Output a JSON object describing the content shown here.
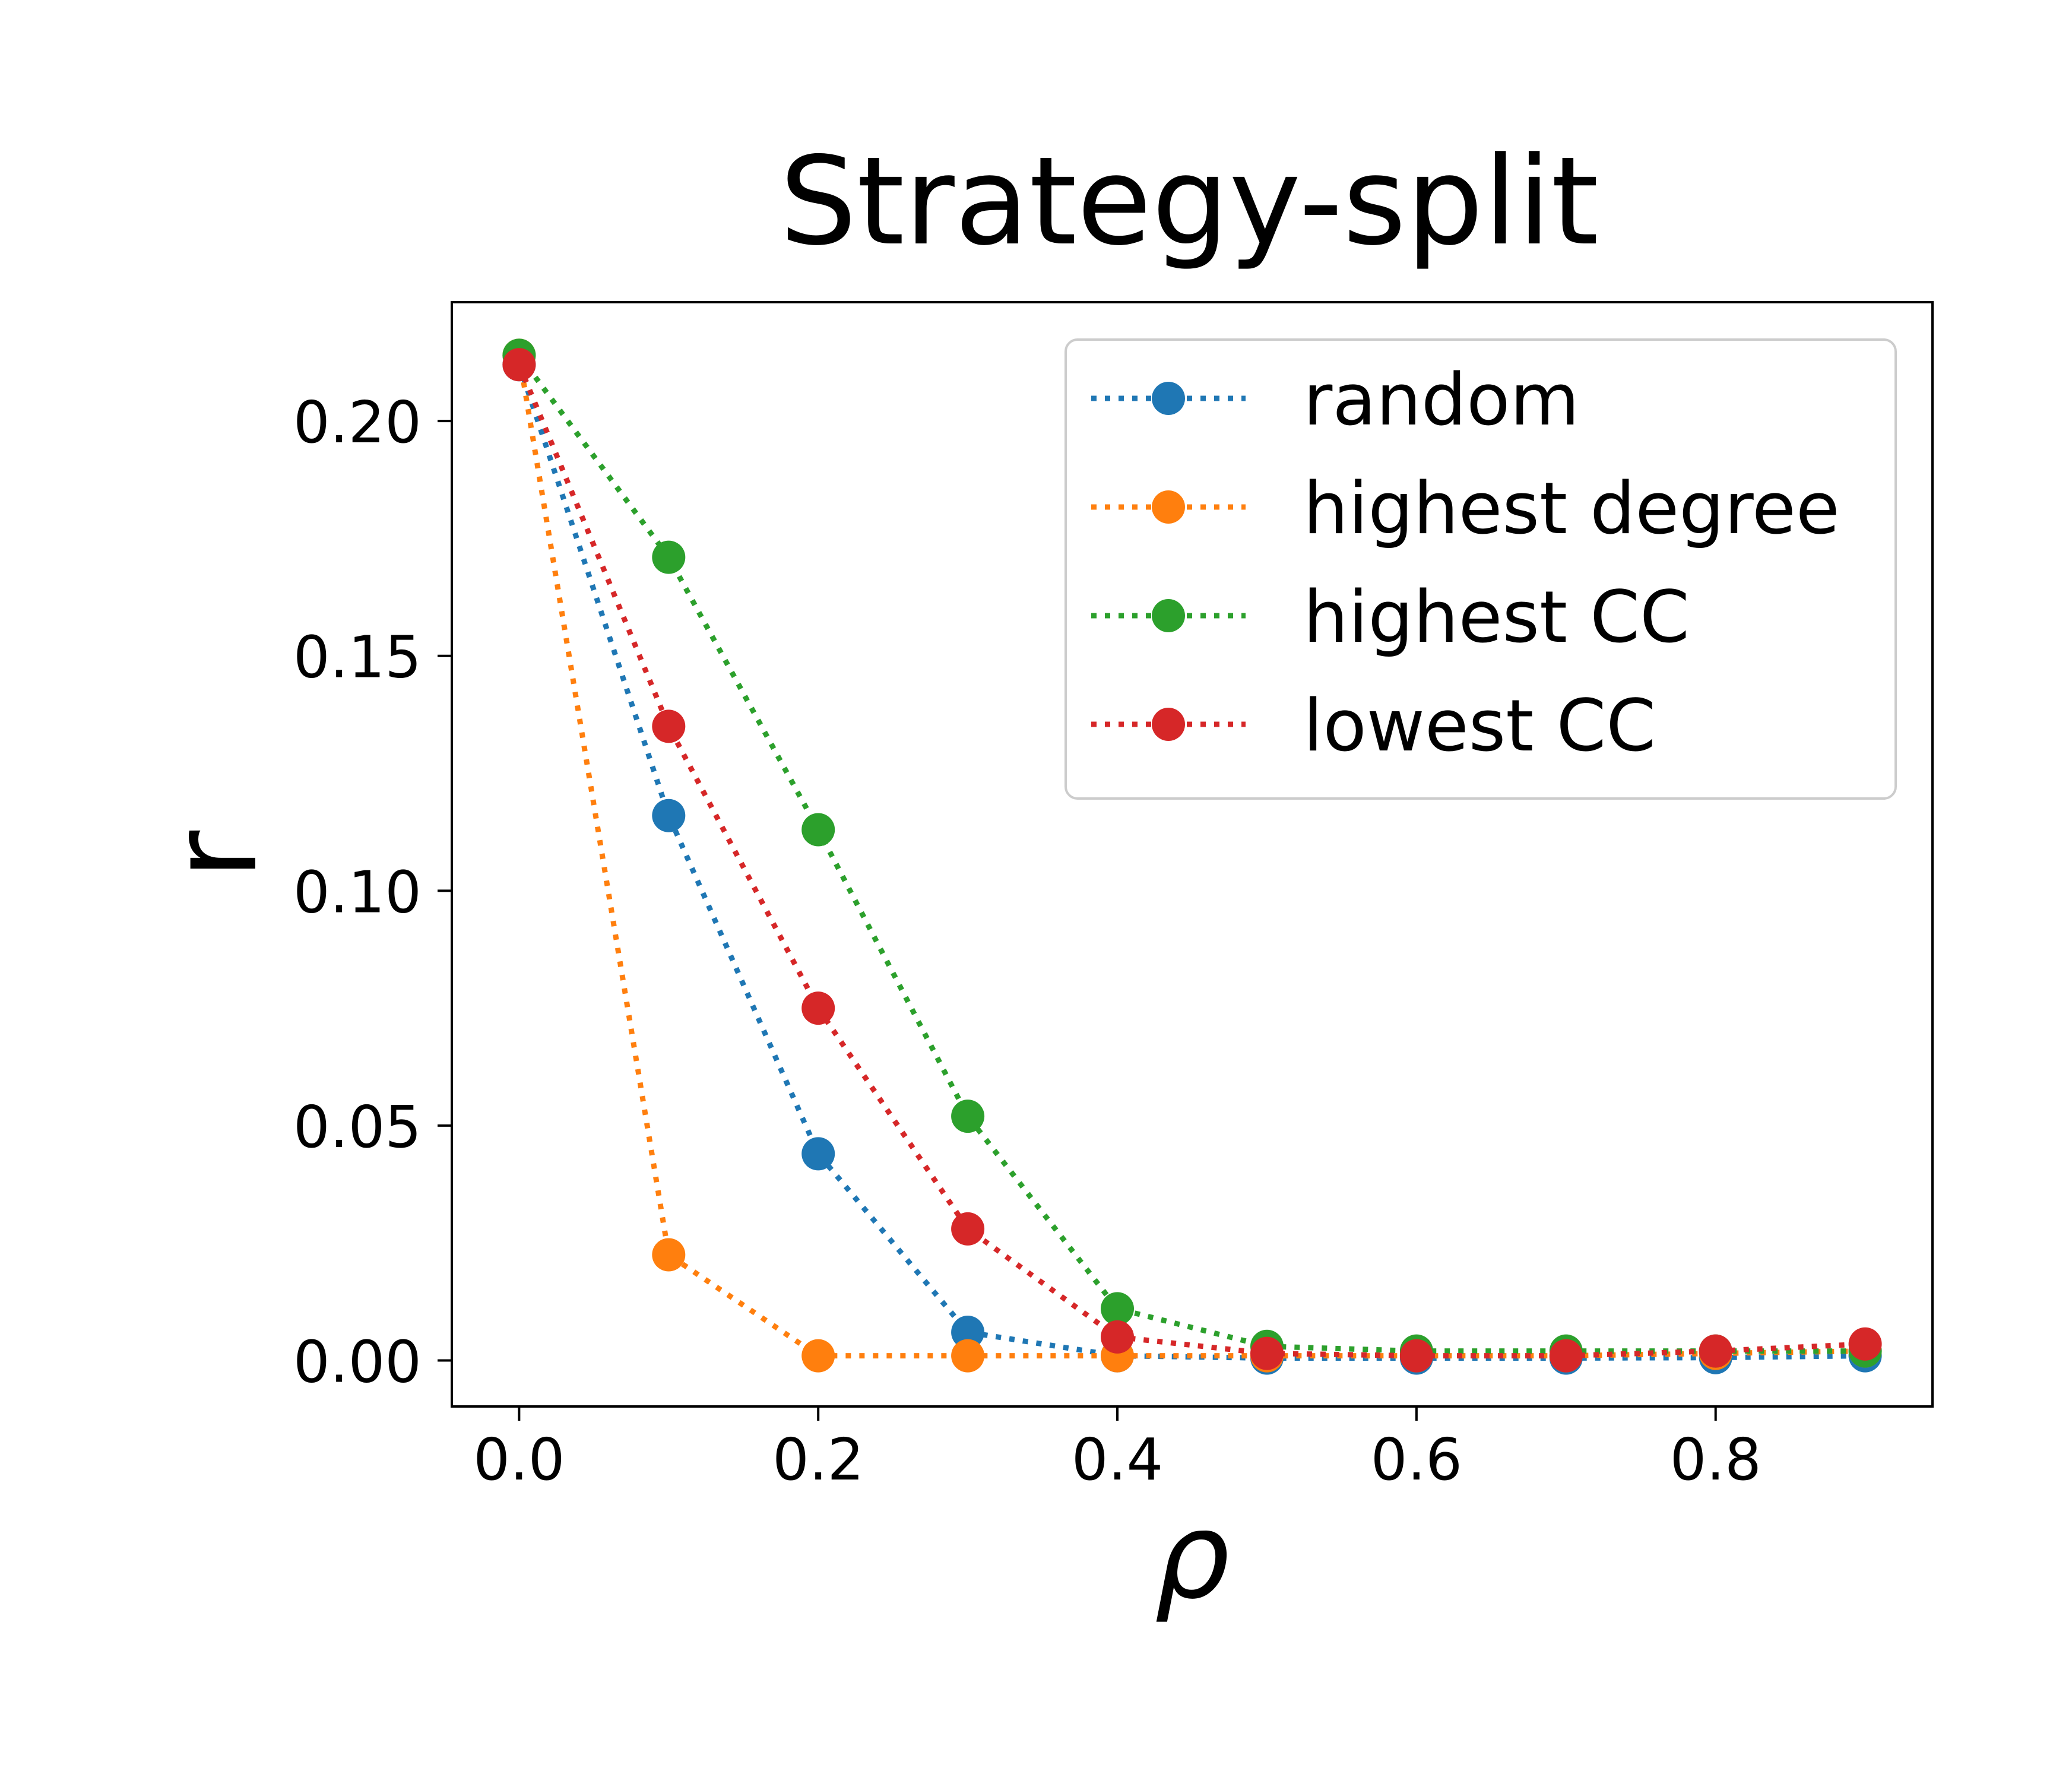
{
  "chart_data": {
    "type": "line",
    "title": "Strategy-split",
    "xlabel": "ρ",
    "ylabel": "r",
    "xlim": [
      -0.045,
      0.945
    ],
    "ylim": [
      -0.0098,
      0.2253
    ],
    "xticks": [
      0.0,
      0.2,
      0.4,
      0.6,
      0.8
    ],
    "xtick_labels": [
      "0.0",
      "0.2",
      "0.4",
      "0.6",
      "0.8"
    ],
    "yticks": [
      0.0,
      0.05,
      0.1,
      0.15,
      0.2
    ],
    "ytick_labels": [
      "0.00",
      "0.05",
      "0.10",
      "0.15",
      "0.20"
    ],
    "grid": false,
    "legend_position": "top-right",
    "line_style": "dotted",
    "marker": "circle",
    "x": [
      0.0,
      0.1,
      0.2,
      0.3,
      0.4,
      0.5,
      0.6,
      0.7,
      0.8,
      0.9
    ],
    "series": [
      {
        "name": "random",
        "color": "#1f77b4",
        "values": [
          0.212,
          0.116,
          0.044,
          0.006,
          0.001,
          0.0005,
          0.0005,
          0.0005,
          0.0006,
          0.001
        ]
      },
      {
        "name": "highest degree",
        "color": "#ff7f0e",
        "values": [
          0.214,
          0.0225,
          0.001,
          0.001,
          0.001,
          0.001,
          0.001,
          0.001,
          0.0015,
          0.002
        ]
      },
      {
        "name": "highest CC",
        "color": "#2ca02c",
        "values": [
          0.214,
          0.171,
          0.113,
          0.052,
          0.011,
          0.003,
          0.002,
          0.002,
          0.002,
          0.002
        ]
      },
      {
        "name": "lowest CC",
        "color": "#d62728",
        "values": [
          0.212,
          0.135,
          0.075,
          0.028,
          0.005,
          0.0015,
          0.001,
          0.001,
          0.002,
          0.0035
        ]
      }
    ]
  }
}
